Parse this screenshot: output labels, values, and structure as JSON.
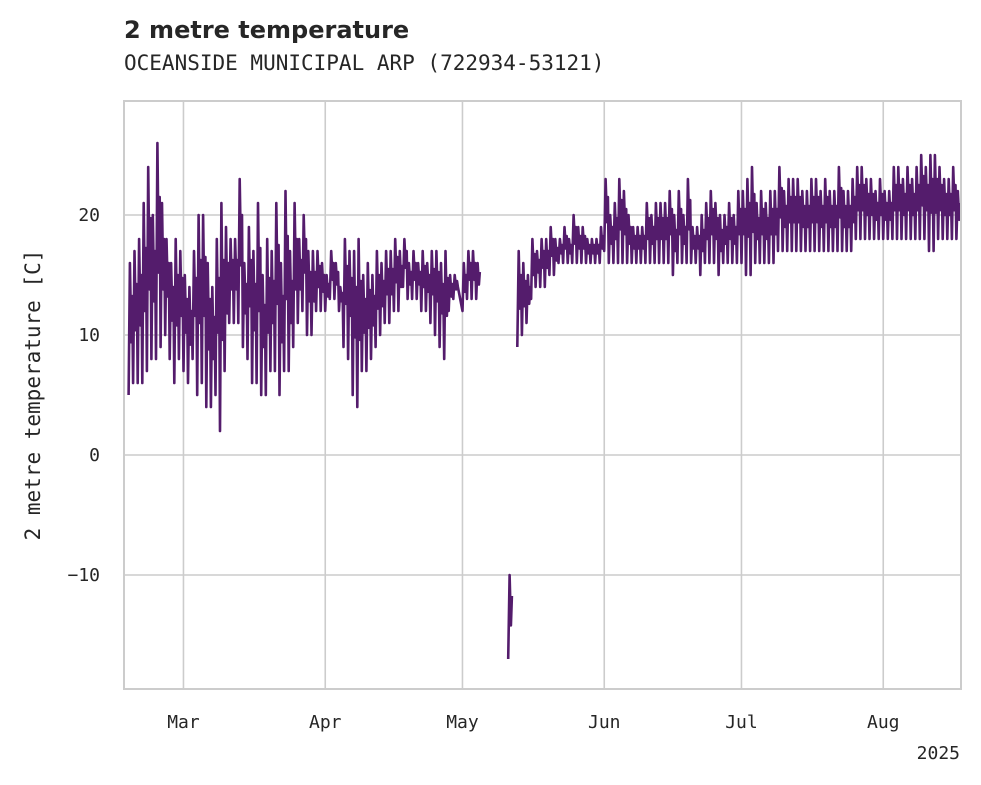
{
  "chart_data": {
    "type": "line",
    "title": "2 metre temperature",
    "subtitle": "OCEANSIDE MUNICIPAL ARP (722934-53121)",
    "xlabel": "",
    "ylabel": "2 metre temperature [C]",
    "x_start": "2025-02-16",
    "x_end": "2025-08-18",
    "x_ticks": [
      {
        "date": "2025-03-01",
        "label": "Mar"
      },
      {
        "date": "2025-04-01",
        "label": "Apr"
      },
      {
        "date": "2025-05-01",
        "label": "May"
      },
      {
        "date": "2025-06-01",
        "label": "Jun"
      },
      {
        "date": "2025-07-01",
        "label": "Jul"
      },
      {
        "date": "2025-08-01",
        "label": "Aug"
      }
    ],
    "x_year_label": "2025",
    "ylim": [
      -19.5,
      29.5
    ],
    "y_ticks": [
      -10,
      0,
      10,
      20
    ],
    "y_tick_labels": [
      "−10",
      "0",
      "10",
      "20"
    ],
    "grid": true,
    "line_color": "#541c6c",
    "series": [
      {
        "x": [
          "2025-02-17",
          "2025-02-18",
          "2025-02-19",
          "2025-02-20",
          "2025-02-21",
          "2025-02-22",
          "2025-02-23",
          "2025-02-24",
          "2025-02-25",
          "2025-02-26",
          "2025-02-27",
          "2025-02-28",
          "2025-03-01",
          "2025-03-02",
          "2025-03-03",
          "2025-03-04",
          "2025-03-05",
          "2025-03-06",
          "2025-03-07",
          "2025-03-08",
          "2025-03-09",
          "2025-03-10",
          "2025-03-11",
          "2025-03-12",
          "2025-03-13",
          "2025-03-14",
          "2025-03-15",
          "2025-03-16",
          "2025-03-17",
          "2025-03-18",
          "2025-03-19",
          "2025-03-20",
          "2025-03-21",
          "2025-03-22",
          "2025-03-23",
          "2025-03-24",
          "2025-03-25",
          "2025-03-26",
          "2025-03-27",
          "2025-03-28",
          "2025-03-29",
          "2025-03-30",
          "2025-03-31",
          "2025-04-01",
          "2025-04-02",
          "2025-04-03",
          "2025-04-04",
          "2025-04-05",
          "2025-04-06",
          "2025-04-07",
          "2025-04-08",
          "2025-04-09",
          "2025-04-10",
          "2025-04-11",
          "2025-04-12",
          "2025-04-13",
          "2025-04-14",
          "2025-04-15",
          "2025-04-16",
          "2025-04-17",
          "2025-04-18",
          "2025-04-19",
          "2025-04-20",
          "2025-04-21",
          "2025-04-22",
          "2025-04-23",
          "2025-04-24",
          "2025-04-25",
          "2025-04-26",
          "2025-04-27",
          "2025-04-28",
          "2025-04-29",
          "2025-04-30",
          "2025-05-01",
          "2025-05-02",
          "2025-05-03",
          "2025-05-04",
          "2025-05-05",
          "2025-05-06",
          "2025-05-07",
          "2025-05-08",
          "2025-05-09",
          "2025-05-10",
          "2025-05-11",
          "2025-05-12",
          "2025-05-13",
          "2025-05-14",
          "2025-05-15",
          "2025-05-16",
          "2025-05-17",
          "2025-05-18",
          "2025-05-19",
          "2025-05-20",
          "2025-05-21",
          "2025-05-22",
          "2025-05-23",
          "2025-05-24",
          "2025-05-25",
          "2025-05-26",
          "2025-05-27",
          "2025-05-28",
          "2025-05-29",
          "2025-05-30",
          "2025-05-31",
          "2025-06-01",
          "2025-06-02",
          "2025-06-03",
          "2025-06-04",
          "2025-06-05",
          "2025-06-06",
          "2025-06-07",
          "2025-06-08",
          "2025-06-09",
          "2025-06-10",
          "2025-06-11",
          "2025-06-12",
          "2025-06-13",
          "2025-06-14",
          "2025-06-15",
          "2025-06-16",
          "2025-06-17",
          "2025-06-18",
          "2025-06-19",
          "2025-06-20",
          "2025-06-21",
          "2025-06-22",
          "2025-06-23",
          "2025-06-24",
          "2025-06-25",
          "2025-06-26",
          "2025-06-27",
          "2025-06-28",
          "2025-06-29",
          "2025-06-30",
          "2025-07-01",
          "2025-07-02",
          "2025-07-03",
          "2025-07-04",
          "2025-07-05",
          "2025-07-06",
          "2025-07-07",
          "2025-07-08",
          "2025-07-09",
          "2025-07-10",
          "2025-07-11",
          "2025-07-12",
          "2025-07-13",
          "2025-07-14",
          "2025-07-15",
          "2025-07-16",
          "2025-07-17",
          "2025-07-18",
          "2025-07-19",
          "2025-07-20",
          "2025-07-21",
          "2025-07-22",
          "2025-07-23",
          "2025-07-24",
          "2025-07-25",
          "2025-07-26",
          "2025-07-27",
          "2025-07-28",
          "2025-07-29",
          "2025-07-30",
          "2025-07-31",
          "2025-08-01",
          "2025-08-02",
          "2025-08-03",
          "2025-08-04",
          "2025-08-05",
          "2025-08-06",
          "2025-08-07",
          "2025-08-08",
          "2025-08-09",
          "2025-08-10",
          "2025-08-11",
          "2025-08-12",
          "2025-08-13",
          "2025-08-14",
          "2025-08-15",
          "2025-08-16",
          "2025-08-17"
        ],
        "max": [
          16,
          17,
          18,
          21,
          24,
          20,
          26,
          21,
          18,
          16,
          18,
          17,
          15,
          14,
          17,
          20,
          20,
          16,
          14,
          18,
          21,
          19,
          18,
          18,
          23,
          16,
          19,
          17,
          21,
          15,
          18,
          17,
          21,
          16,
          22,
          17,
          21,
          18,
          20,
          17,
          17,
          17,
          16,
          15,
          17,
          16,
          14,
          18,
          17,
          17,
          18,
          15,
          16,
          15,
          17,
          16,
          17,
          17,
          18,
          17,
          18,
          16,
          17,
          16,
          17,
          16,
          17,
          17,
          16,
          17,
          15,
          15,
          14,
          16,
          17,
          17,
          16,
          null,
          null,
          null,
          null,
          null,
          null,
          -10,
          null,
          17,
          16,
          15,
          18,
          17,
          18,
          18,
          19,
          18,
          18,
          19,
          18,
          20,
          19,
          19,
          18,
          18,
          18,
          19,
          23,
          20,
          21,
          23,
          22,
          20,
          19,
          19,
          19,
          21,
          20,
          21,
          21,
          21,
          22,
          20,
          22,
          20,
          23,
          19,
          19,
          20,
          21,
          22,
          21,
          20,
          20,
          21,
          20,
          22,
          22,
          23,
          24,
          21,
          22,
          21,
          22,
          22,
          24,
          22,
          23,
          23,
          23,
          22,
          22,
          23,
          23,
          22,
          23,
          22,
          22,
          24,
          22,
          22,
          23,
          24,
          24,
          23,
          23,
          22,
          23,
          22,
          22,
          24,
          24,
          23,
          24,
          23,
          24,
          25,
          24,
          25,
          25,
          24,
          23,
          23,
          24,
          22,
          23,
          22
        ],
        "min": [
          5,
          6,
          6,
          6,
          7,
          8,
          8,
          9,
          10,
          8,
          6,
          8,
          7,
          6,
          8,
          5,
          6,
          4,
          4,
          5,
          2,
          7,
          11,
          11,
          11,
          9,
          8,
          6,
          6,
          5,
          5,
          7,
          7,
          5,
          7,
          7,
          9,
          11,
          12,
          10,
          10,
          12,
          12,
          12,
          13,
          13,
          12,
          9,
          8,
          5,
          4,
          7,
          7,
          8,
          9,
          10,
          11,
          11,
          12,
          12,
          14,
          13,
          13,
          13,
          12,
          12,
          11,
          10,
          9,
          8,
          12,
          13,
          13,
          12,
          13,
          13,
          13,
          null,
          null,
          null,
          null,
          null,
          null,
          -17,
          null,
          9,
          10,
          11,
          13,
          14,
          14,
          14,
          15,
          15,
          16,
          16,
          16,
          16,
          16,
          16,
          16,
          16,
          16,
          16,
          17,
          16,
          16,
          16,
          16,
          16,
          16,
          16,
          16,
          16,
          16,
          16,
          16,
          16,
          16,
          15,
          16,
          16,
          16,
          16,
          16,
          15,
          16,
          16,
          16,
          15,
          16,
          16,
          16,
          16,
          16,
          15,
          15,
          16,
          16,
          16,
          16,
          16,
          17,
          17,
          17,
          17,
          17,
          17,
          17,
          17,
          17,
          17,
          17,
          17,
          17,
          17,
          17,
          17,
          17,
          18,
          18,
          18,
          18,
          18,
          18,
          18,
          18,
          18,
          18,
          18,
          18,
          18,
          18,
          18,
          18,
          17,
          17,
          18,
          18,
          18,
          18,
          18,
          19,
          19
        ]
      }
    ]
  }
}
